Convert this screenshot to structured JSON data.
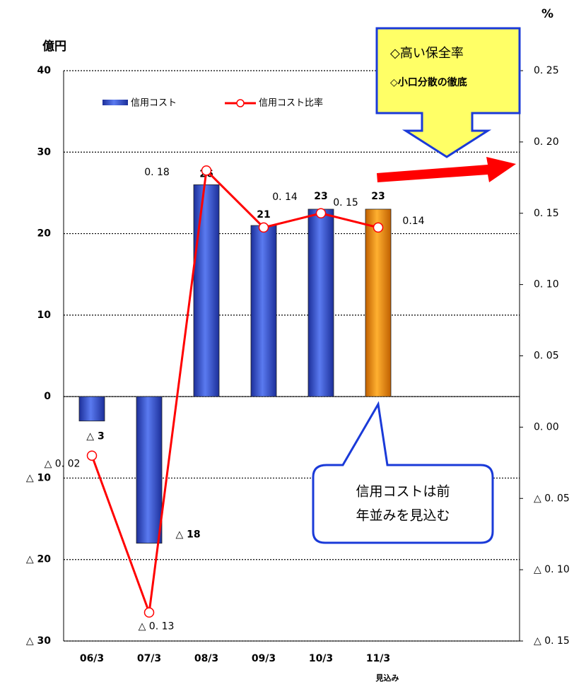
{
  "chart_data": {
    "type": "bar",
    "y_label": "億円",
    "y2_label": "%",
    "categories": [
      "06/3",
      "07/3",
      "08/3",
      "09/3",
      "10/3",
      "11/3"
    ],
    "category_note": "見込み",
    "series": [
      {
        "name": "信用コスト",
        "type": "bar",
        "colors": [
          "#3a56c8",
          "#3a56c8",
          "#3a56c8",
          "#3a56c8",
          "#3a56c8",
          "#f59a00"
        ],
        "values": [
          -3,
          -18,
          26,
          21,
          23,
          23
        ],
        "value_labels": [
          "△ 3",
          "△ 18",
          "26",
          "21",
          "23",
          "23"
        ]
      },
      {
        "name": "信用コスト比率",
        "type": "line",
        "axis": "y2",
        "color": "#ff0000",
        "values": [
          -0.02,
          -0.13,
          0.18,
          0.14,
          0.15,
          0.14
        ],
        "value_labels": [
          "△ 0. 02",
          "△ 0. 13",
          "0. 18",
          "0. 14",
          "0. 15",
          "0.14"
        ]
      }
    ],
    "ylim": [
      -30,
      40
    ],
    "yticks": [
      40,
      30,
      20,
      10,
      0,
      {
        "value": -10,
        "label": "△ 10"
      },
      {
        "value": -20,
        "label": "△ 20"
      },
      {
        "value": -30,
        "label": "△ 30"
      }
    ],
    "y2lim": [
      -0.15,
      0.25
    ],
    "y2ticks": [
      {
        "value": 0.25,
        "label": "0. 25"
      },
      {
        "value": 0.2,
        "label": "0. 20"
      },
      {
        "value": 0.15,
        "label": "0. 15"
      },
      {
        "value": 0.1,
        "label": "0. 10"
      },
      {
        "value": 0.05,
        "label": "0. 05"
      },
      {
        "value": 0,
        "label": "0. 00"
      },
      {
        "value": -0.05,
        "label": "△ 0. 05"
      },
      {
        "value": -0.1,
        "label": "△ 0. 10"
      },
      {
        "value": -0.15,
        "label": "△ 0. 15"
      }
    ],
    "grid": true,
    "callout_top": [
      "◇高い保全率",
      "◇小口分散の徹底"
    ],
    "callout_bottom": [
      "信用コストは前",
      "年並みを見込む"
    ]
  }
}
